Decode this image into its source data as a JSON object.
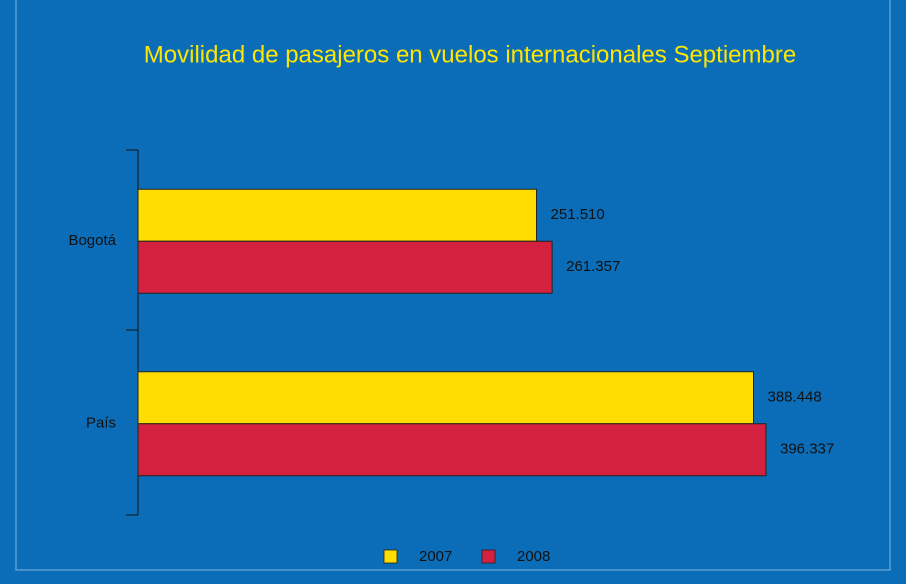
{
  "chart_data": {
    "type": "barh",
    "title": "Movilidad de pasajeros en vuelos internacionales Septiembre",
    "categories": [
      "Bogotá",
      "País"
    ],
    "series": [
      {
        "name": "2007",
        "color": "#ffdd00",
        "values": [
          251510,
          388448
        ],
        "value_labels": [
          "251.510",
          "388.448"
        ]
      },
      {
        "name": "2008",
        "color": "#d42140",
        "values": [
          261357,
          396337
        ],
        "value_labels": [
          "261.357",
          "396.337"
        ]
      }
    ],
    "legend": "bottom"
  }
}
